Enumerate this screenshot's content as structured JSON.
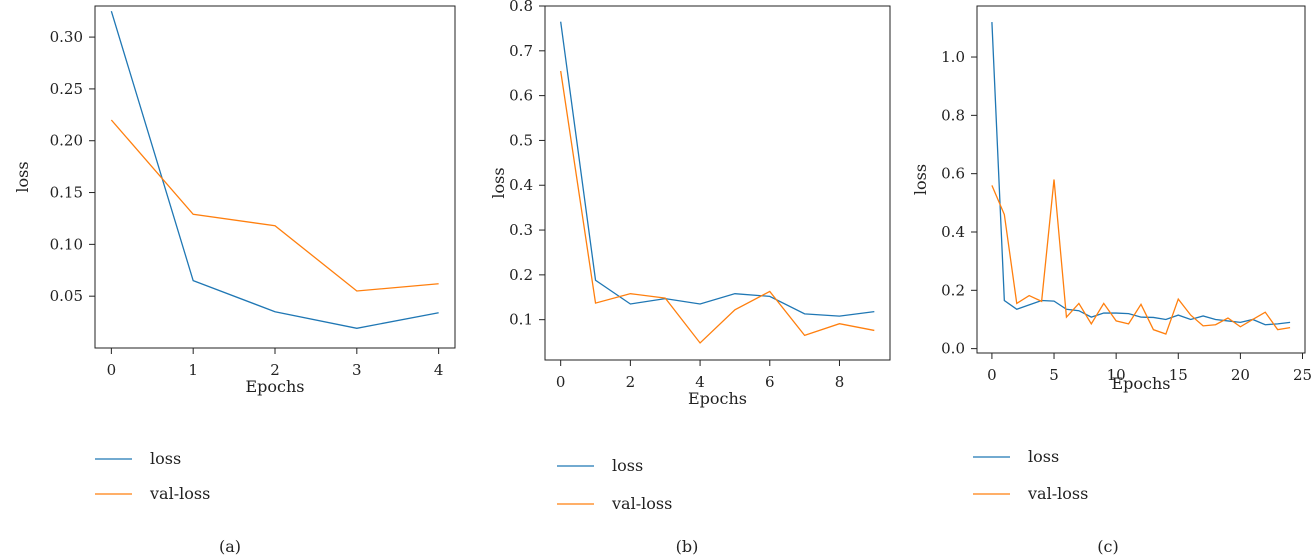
{
  "colors": {
    "loss": "#1f77b4",
    "val_loss": "#ff7f0e"
  },
  "chart_data": [
    {
      "type": "line",
      "caption": "(a)",
      "xlabel": "Epochs",
      "ylabel": "loss",
      "xlim": [
        -0.2,
        4.2
      ],
      "ylim": [
        0.0,
        0.33
      ],
      "xticks": [
        0,
        1,
        2,
        3,
        4
      ],
      "yticks": [
        0.05,
        0.1,
        0.15,
        0.2,
        0.25,
        0.3
      ],
      "ytick_labels": [
        "0.05",
        "0.10",
        "0.15",
        "0.20",
        "0.25",
        "0.30"
      ],
      "x": [
        0,
        1,
        2,
        3,
        4
      ],
      "series": [
        {
          "name": "loss",
          "values": [
            0.325,
            0.065,
            0.035,
            0.019,
            0.034
          ]
        },
        {
          "name": "val-loss",
          "values": [
            0.22,
            0.129,
            0.118,
            0.055,
            0.062
          ]
        }
      ],
      "legend": [
        "loss",
        "val-loss"
      ],
      "legend_position": "below"
    },
    {
      "type": "line",
      "caption": "(b)",
      "xlabel": "Epochs",
      "ylabel": "loss",
      "xlim": [
        -0.45,
        9.45
      ],
      "ylim": [
        0.01,
        0.8
      ],
      "xticks": [
        0,
        2,
        4,
        6,
        8
      ],
      "yticks": [
        0.1,
        0.2,
        0.3,
        0.4,
        0.5,
        0.6,
        0.7,
        0.8
      ],
      "ytick_labels": [
        "0.1",
        "0.2",
        "0.3",
        "0.4",
        "0.5",
        "0.6",
        "0.7",
        "0.8"
      ],
      "x": [
        0,
        1,
        2,
        3,
        4,
        5,
        6,
        7,
        8,
        9
      ],
      "series": [
        {
          "name": "loss",
          "values": [
            0.765,
            0.188,
            0.135,
            0.147,
            0.135,
            0.158,
            0.152,
            0.113,
            0.108,
            0.118
          ]
        },
        {
          "name": "val-loss",
          "values": [
            0.655,
            0.137,
            0.158,
            0.148,
            0.048,
            0.122,
            0.163,
            0.065,
            0.091,
            0.076
          ]
        }
      ],
      "legend": [
        "loss",
        "val-loss"
      ],
      "legend_position": "below"
    },
    {
      "type": "line",
      "caption": "(c)",
      "xlabel": "Epochs",
      "ylabel": "loss",
      "xlim": [
        -1.2,
        25.2
      ],
      "ylim": [
        -0.015,
        1.175
      ],
      "xticks": [
        0,
        5,
        10,
        15,
        20,
        25
      ],
      "yticks": [
        0.0,
        0.2,
        0.4,
        0.6,
        0.8,
        1.0
      ],
      "ytick_labels": [
        "0.0",
        "0.2",
        "0.4",
        "0.6",
        "0.8",
        "1.0"
      ],
      "x": [
        0,
        1,
        2,
        3,
        4,
        5,
        6,
        7,
        8,
        9,
        10,
        11,
        12,
        13,
        14,
        15,
        16,
        17,
        18,
        19,
        20,
        21,
        22,
        23,
        24
      ],
      "series": [
        {
          "name": "loss",
          "values": [
            1.12,
            0.165,
            0.135,
            0.15,
            0.165,
            0.163,
            0.135,
            0.13,
            0.108,
            0.122,
            0.122,
            0.12,
            0.108,
            0.107,
            0.1,
            0.115,
            0.1,
            0.112,
            0.1,
            0.095,
            0.09,
            0.1,
            0.082,
            0.085,
            0.09
          ]
        },
        {
          "name": "val-loss",
          "values": [
            0.56,
            0.46,
            0.155,
            0.182,
            0.162,
            0.58,
            0.108,
            0.155,
            0.085,
            0.155,
            0.095,
            0.085,
            0.152,
            0.065,
            0.05,
            0.17,
            0.115,
            0.078,
            0.082,
            0.105,
            0.075,
            0.1,
            0.125,
            0.065,
            0.072
          ]
        }
      ],
      "legend": [
        "loss",
        "val-loss"
      ],
      "legend_position": "below"
    }
  ]
}
